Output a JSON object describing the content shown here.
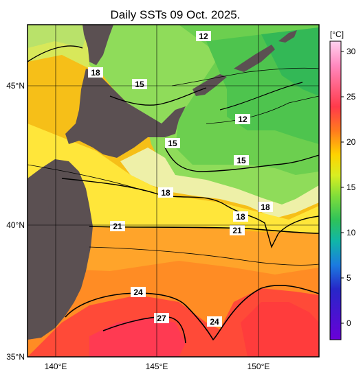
{
  "title": "Daily SSTs 09 Oct. 2025.",
  "map": {
    "latitude_labels": [
      "45°N",
      "40°N",
      "35°N"
    ],
    "longitude_labels": [
      "140°E",
      "145°E",
      "150°E"
    ],
    "contour_labels": [
      "12",
      "12",
      "15",
      "15",
      "15",
      "18",
      "18",
      "18",
      "18",
      "21",
      "21",
      "24",
      "24",
      "27"
    ],
    "land_color": "#5b5052",
    "contour_color": "#000000"
  },
  "colorbar": {
    "unit": "[°C]",
    "ticks": [
      "30",
      "25",
      "20",
      "15",
      "10",
      "5",
      "0"
    ],
    "colors": [
      "#ffd2f0",
      "#ff8ac0",
      "#ff3a4a",
      "#ff7a1e",
      "#ffd300",
      "#d8ee22",
      "#7fdd3a",
      "#2ec25a",
      "#10b6a8",
      "#1b7be0",
      "#2727c8",
      "#6a00d8"
    ]
  }
}
